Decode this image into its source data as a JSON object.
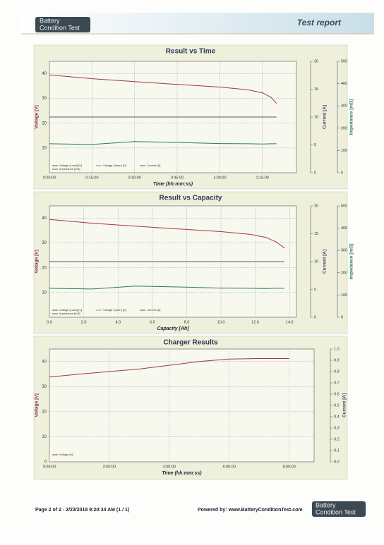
{
  "header": {
    "logo_line1": "Battery",
    "logo_line2": "Condition Test",
    "title": "Test report"
  },
  "footer": {
    "page": "Page 2 of 2 - 2/23/2018 9:20:34 AM (1 / 1)",
    "powered": "Powered by: www.BatteryConditionTest.com"
  },
  "chart_data": [
    {
      "type": "line",
      "title": "Result vs Time",
      "xlabel": "Time (hh:mm:ss)",
      "ylabel": "Voltage [V]",
      "y2label": "Current [A]",
      "y3label": "Impedance [mΩ]",
      "x": [
        0,
        15,
        30,
        45,
        60,
        70,
        75,
        78,
        80
      ],
      "xlim": [
        0,
        87
      ],
      "xticks": [
        {
          "value": 0,
          "label": "0:00:00"
        },
        {
          "value": 15,
          "label": "0:15:00"
        },
        {
          "value": 30,
          "label": "0:30:00"
        },
        {
          "value": 45,
          "label": "0:45:00"
        },
        {
          "value": 60,
          "label": "1:00:00"
        },
        {
          "value": 75,
          "label": "1:15:00"
        }
      ],
      "ylim": [
        0,
        45
      ],
      "yticks": [
        10,
        20,
        30,
        40
      ],
      "y2lim": [
        0,
        20
      ],
      "y2ticks": [
        0,
        5,
        10,
        15,
        20
      ],
      "y3lim": [
        0,
        500
      ],
      "y3ticks": [
        0,
        100,
        200,
        300,
        400,
        500
      ],
      "grid": true,
      "series": [
        {
          "name": "Voltage (Load) [V]",
          "color": "#a3344f",
          "values": [
            39.5,
            38,
            36.8,
            35.7,
            34.6,
            33.5,
            32.3,
            30.5,
            28
          ]
        },
        {
          "name": "Voltage (Open) [V]",
          "color": "#c07a8a",
          "values": [
            null,
            null,
            null,
            null,
            null,
            null,
            null,
            null,
            null
          ]
        },
        {
          "name": "Current [A]",
          "color": "#5a5470",
          "axis": "y2",
          "values": [
            10,
            10,
            10,
            10,
            10,
            10,
            10,
            10,
            10
          ]
        },
        {
          "name": "Impedance [mΩ]",
          "color": "#2e7a5a",
          "axis": "y3",
          "values": [
            130,
            127,
            140,
            136,
            131,
            130,
            129,
            130,
            130
          ]
        }
      ]
    },
    {
      "type": "line",
      "title": "Result vs Capacity",
      "xlabel": "Capacity [Ah]",
      "ylabel": "Voltage [V]",
      "y2label": "Current [A]",
      "y3label": "Impedance [mΩ]",
      "x": [
        0,
        2.5,
        5,
        7.5,
        10,
        11.7,
        12.6,
        13.2,
        13.7
      ],
      "xlim": [
        0,
        14.4
      ],
      "xticks": [
        {
          "value": 0,
          "label": "0.0"
        },
        {
          "value": 2,
          "label": "2.0"
        },
        {
          "value": 4,
          "label": "4.0"
        },
        {
          "value": 6,
          "label": "6.0"
        },
        {
          "value": 8,
          "label": "8.0"
        },
        {
          "value": 10,
          "label": "10.0"
        },
        {
          "value": 12,
          "label": "12.0"
        },
        {
          "value": 14,
          "label": "14.0"
        }
      ],
      "ylim": [
        0,
        45
      ],
      "yticks": [
        10,
        20,
        30,
        40
      ],
      "y2lim": [
        0,
        20
      ],
      "y2ticks": [
        0,
        5,
        10,
        15,
        20
      ],
      "y3lim": [
        0,
        500
      ],
      "y3ticks": [
        0,
        100,
        200,
        300,
        400,
        500
      ],
      "grid": true,
      "series": [
        {
          "name": "Voltage (Load) [V]",
          "color": "#a3344f",
          "values": [
            39.5,
            38,
            36.8,
            35.7,
            34.6,
            33.5,
            32.3,
            30.5,
            28
          ]
        },
        {
          "name": "Voltage (Open) [V]",
          "color": "#c07a8a",
          "values": [
            null,
            null,
            null,
            null,
            null,
            null,
            null,
            null,
            null
          ]
        },
        {
          "name": "Current [A]",
          "color": "#5a5470",
          "axis": "y2",
          "values": [
            10,
            10,
            10,
            10,
            10,
            10,
            10,
            10,
            10
          ]
        },
        {
          "name": "Impedance [mΩ]",
          "color": "#2e7a5a",
          "axis": "y3",
          "values": [
            130,
            127,
            140,
            136,
            131,
            130,
            129,
            130,
            130
          ]
        }
      ]
    },
    {
      "type": "line",
      "title": "Charger Results",
      "xlabel": "Time (hh:mm:ss)",
      "ylabel": "Voltage [V]",
      "y2label": "Current [A]",
      "x": [
        0,
        60,
        120,
        180,
        240,
        300,
        360,
        420,
        480
      ],
      "xlim": [
        0,
        530
      ],
      "xticks": [
        {
          "value": 0,
          "label": "0:00:00"
        },
        {
          "value": 120,
          "label": "2:00:00"
        },
        {
          "value": 240,
          "label": "4:00:00"
        },
        {
          "value": 360,
          "label": "6:00:00"
        },
        {
          "value": 480,
          "label": "8:00:00"
        }
      ],
      "ylim": [
        0,
        45
      ],
      "yticks": [
        0,
        10,
        20,
        30,
        40
      ],
      "y2lim": [
        0,
        1
      ],
      "y2ticks": [
        {
          "value": 0,
          "label": "0.0"
        },
        0.1,
        0.2,
        0.3,
        0.4,
        0.5,
        0.6,
        0.7,
        0.8,
        0.9,
        {
          "value": 1,
          "label": "1.0"
        }
      ],
      "grid": true,
      "series": [
        {
          "name": "Voltage [V]",
          "color": "#a3344f",
          "values": [
            33.8,
            35,
            36,
            37,
            38.5,
            40,
            41,
            41.2,
            41.2
          ]
        }
      ]
    }
  ]
}
